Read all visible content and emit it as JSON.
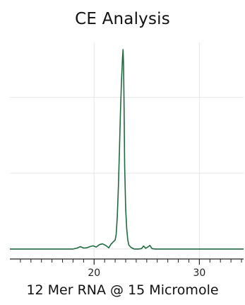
{
  "chart_data": {
    "type": "line",
    "title": "CE Analysis",
    "xlabel": "12 Mer RNA @ 15 Micromole",
    "ylabel": "",
    "xlim": [
      12,
      34.2
    ],
    "ylim": [
      -0.05,
      1.0
    ],
    "x_ticks_major": [
      20,
      30
    ],
    "x_ticks_minor": [
      13,
      14,
      15,
      16,
      17,
      18,
      19,
      21,
      22,
      23,
      24,
      25,
      26,
      27,
      28,
      29,
      31,
      32,
      33,
      34
    ],
    "grid": true,
    "legend": "none",
    "colors": {
      "line": "#1f6b3f",
      "grid": "#e6e6e6",
      "axis": "#222222"
    },
    "series": [
      {
        "x": [
          12.0,
          14.0,
          16.0,
          18.0,
          18.4,
          18.7,
          19.0,
          19.3,
          19.6,
          19.9,
          20.2,
          20.5,
          20.8,
          21.1,
          21.4,
          21.6,
          21.8,
          22.0,
          22.1,
          22.2,
          22.3,
          22.4,
          22.5,
          22.6,
          22.7,
          22.75,
          22.8,
          22.85,
          22.9,
          23.0,
          23.1,
          23.2,
          23.3,
          23.5,
          23.8,
          24.2,
          24.5,
          24.7,
          24.9,
          25.1,
          25.3,
          25.5,
          25.8,
          26.2,
          27.0,
          28.0,
          30.0,
          32.0,
          34.2
        ],
        "y": [
          0.0,
          0.0,
          0.0,
          0.0,
          0.005,
          0.012,
          0.005,
          0.006,
          0.012,
          0.016,
          0.01,
          0.022,
          0.026,
          0.018,
          0.006,
          0.024,
          0.035,
          0.045,
          0.075,
          0.16,
          0.3,
          0.48,
          0.68,
          0.84,
          0.96,
          1.0,
          0.92,
          0.7,
          0.42,
          0.2,
          0.1,
          0.045,
          0.02,
          0.008,
          0.0,
          0.0,
          0.002,
          0.015,
          0.004,
          0.01,
          0.018,
          0.002,
          0.0,
          0.0,
          0.0,
          0.0,
          0.0,
          0.0,
          0.0
        ]
      }
    ]
  }
}
